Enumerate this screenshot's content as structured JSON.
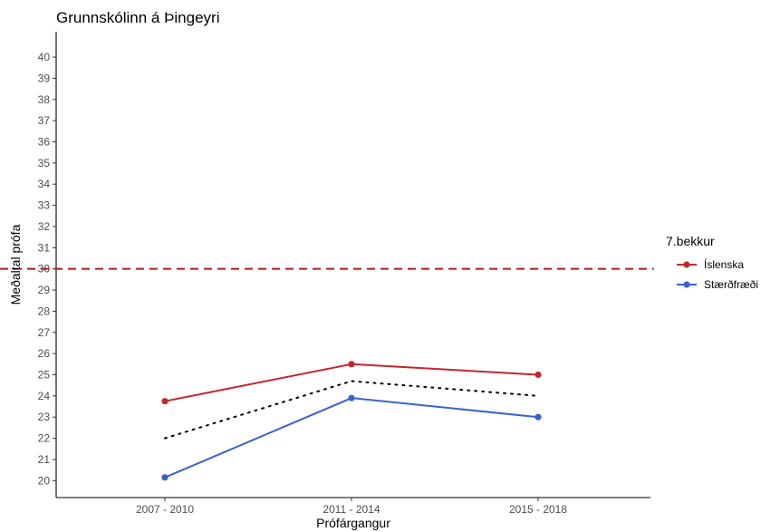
{
  "chart_data": {
    "type": "line",
    "title": "Grunnskólinn á Þingeyri",
    "xlabel": "Prófárgangur",
    "ylabel": "Meðaltal prófa",
    "categories": [
      "2007 - 2010",
      "2011 - 2014",
      "2015 - 2018"
    ],
    "ylim": [
      19.2,
      41.2
    ],
    "yticks": [
      20,
      21,
      22,
      23,
      24,
      25,
      26,
      27,
      28,
      29,
      30,
      31,
      32,
      33,
      34,
      35,
      36,
      37,
      38,
      39,
      40
    ],
    "grid": false,
    "series": [
      {
        "name": "Íslenska",
        "color": "#c0282d",
        "values": [
          23.75,
          25.5,
          25.0
        ]
      },
      {
        "name": "Stærðfræði",
        "color": "#3a62c9",
        "values": [
          20.15,
          23.9,
          23.0
        ]
      }
    ],
    "average_line": {
      "values": [
        22.0,
        24.7,
        24.0
      ],
      "color": "#000000",
      "style": "dotted"
    },
    "reference_line": {
      "y": 30,
      "color": "#b01c1c",
      "style": "dashed"
    },
    "legend": {
      "title": "7.bekkur",
      "position": "right"
    }
  }
}
